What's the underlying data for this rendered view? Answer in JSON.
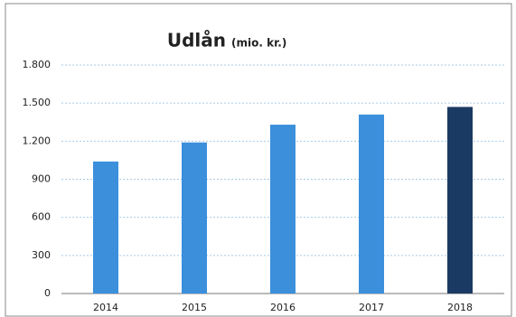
{
  "chart_data": {
    "type": "bar",
    "title": "Udlån",
    "subtitle": "(mio. kr.)",
    "categories": [
      "2014",
      "2015",
      "2016",
      "2017",
      "2018"
    ],
    "values": [
      1040,
      1190,
      1330,
      1410,
      1470
    ],
    "colors": [
      "#3b8fdb",
      "#3b8fdb",
      "#3b8fdb",
      "#3b8fdb",
      "#1b3a63"
    ],
    "ylim": [
      0,
      1800
    ],
    "yticks": [
      {
        "value": 0,
        "label": "0"
      },
      {
        "value": 300,
        "label": "300"
      },
      {
        "value": 600,
        "label": "600"
      },
      {
        "value": 900,
        "label": "900"
      },
      {
        "value": 1200,
        "label": "1.200"
      },
      {
        "value": 1500,
        "label": "1.500"
      },
      {
        "value": 1800,
        "label": "1.800"
      }
    ],
    "grid": true
  }
}
